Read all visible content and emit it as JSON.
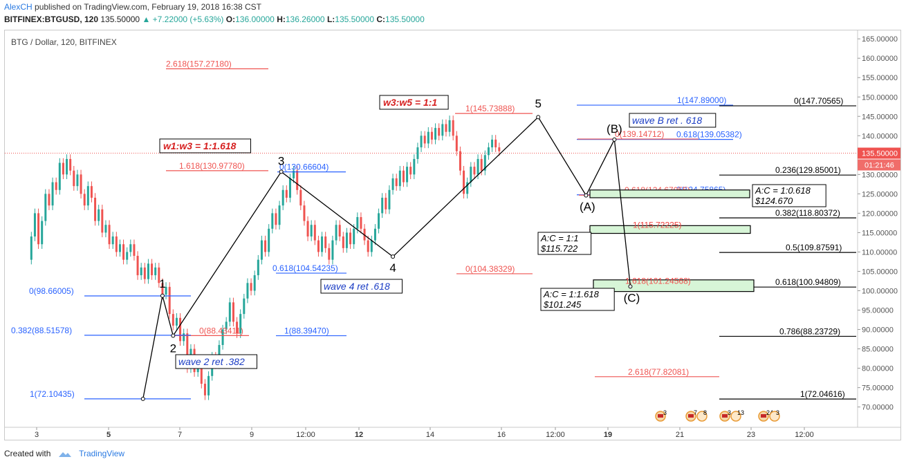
{
  "header": {
    "author": "AlexCH",
    "published": " published on TradingView.com, February 19, 2018 16:38 CST",
    "symbol": "BITFINEX:BTGUSD, 120",
    "price": "135.50000",
    "change": "▲ +7.22000 (+5.63%)",
    "o_label": "O:",
    "o_value": "136.00000",
    "h_label": "H:",
    "h_value": "136.26000",
    "l_label": "L:",
    "l_value": "135.50000",
    "c_label": "C:",
    "c_value": "135.50000"
  },
  "symbol_title": "BTG / Dollar, 120, BITFINEX",
  "footer": {
    "created_with": "Created with",
    "brand": "TradingView"
  },
  "colors": {
    "up": "#26a69a",
    "down": "#ef5350",
    "fib_red": "#ef5350",
    "fib_blue": "#2962ff",
    "line": "#000000",
    "zone_fill": "#d7f5d7"
  },
  "chart_data": {
    "type": "candlestick",
    "title": "BTG / Dollar, 120, BITFINEX",
    "ylim": [
      65,
      166
    ],
    "y_ticks": [
      65,
      70,
      75,
      80,
      85,
      90,
      95,
      100,
      105,
      110,
      115,
      120,
      125,
      130,
      135,
      140,
      145,
      150,
      155,
      160,
      165
    ],
    "y_tick_labels": [
      "65.00000",
      "70.00000",
      "75.00000",
      "80.00000",
      "85.00000",
      "90.00000",
      "95.00000",
      "100.00000",
      "105.00000",
      "110.00000",
      "115.00000",
      "120.00000",
      "125.00000",
      "130.00000",
      "135.00000",
      "140.00000",
      "145.00000",
      "150.00000",
      "155.00000",
      "160.00000",
      "165.00000"
    ],
    "x_ticks": [
      {
        "label": "3",
        "bold": false
      },
      {
        "label": "5",
        "bold": true
      },
      {
        "label": "7",
        "bold": false
      },
      {
        "label": "9",
        "bold": false
      },
      {
        "label": "12:00",
        "bold": false
      },
      {
        "label": "12",
        "bold": true
      },
      {
        "label": "14",
        "bold": false
      },
      {
        "label": "16",
        "bold": false
      },
      {
        "label": "12:00",
        "bold": false
      },
      {
        "label": "19",
        "bold": true
      },
      {
        "label": "21",
        "bold": false
      },
      {
        "label": "23",
        "bold": false
      },
      {
        "label": "12:00",
        "bold": false
      }
    ],
    "last_price": "135.50000",
    "countdown": "01:21:46",
    "wave_path": [
      {
        "label": "",
        "t": 6.0,
        "y": 72.1
      },
      {
        "label": "1",
        "t": 6.55,
        "y": 98.7
      },
      {
        "label": "2",
        "t": 6.85,
        "y": 88.4
      },
      {
        "label": "3",
        "t": 9.9,
        "y": 130.7
      },
      {
        "label": "4",
        "t": 13.05,
        "y": 108.8
      },
      {
        "label": "5",
        "t": 17.15,
        "y": 144.8
      },
      {
        "label": "(A)",
        "t": 18.5,
        "y": 124.6
      },
      {
        "label": "(B)",
        "t": 19.3,
        "y": 139.0
      },
      {
        "label": "(C)",
        "t": 19.75,
        "y": 101.1
      }
    ],
    "candles": [
      [
        -0.15,
        108,
        114
      ],
      [
        -0.05,
        114,
        120
      ],
      [
        0.05,
        120,
        112
      ],
      [
        0.15,
        112,
        118
      ],
      [
        0.25,
        118,
        125
      ],
      [
        0.35,
        125,
        122
      ],
      [
        0.45,
        122,
        128
      ],
      [
        0.55,
        128,
        126
      ],
      [
        0.65,
        126,
        133
      ],
      [
        0.75,
        133,
        130
      ],
      [
        0.85,
        130,
        134
      ],
      [
        0.95,
        134,
        131
      ],
      [
        1.05,
        131,
        127
      ],
      [
        1.15,
        127,
        130
      ],
      [
        1.25,
        130,
        125
      ],
      [
        1.35,
        125,
        122
      ],
      [
        1.45,
        122,
        127
      ],
      [
        1.55,
        127,
        124
      ],
      [
        1.65,
        124,
        118
      ],
      [
        1.75,
        118,
        121
      ],
      [
        1.85,
        121,
        115
      ],
      [
        1.95,
        115,
        117
      ],
      [
        2.05,
        117,
        112
      ],
      [
        2.15,
        112,
        114
      ],
      [
        2.25,
        114,
        110
      ],
      [
        2.35,
        110,
        112
      ],
      [
        2.45,
        112,
        108
      ],
      [
        2.55,
        108,
        110
      ],
      [
        2.65,
        110,
        112
      ],
      [
        2.75,
        112,
        109
      ],
      [
        2.85,
        109,
        104
      ],
      [
        2.95,
        104,
        106
      ],
      [
        3.05,
        106,
        103
      ],
      [
        3.15,
        103,
        107
      ],
      [
        3.25,
        107,
        104
      ],
      [
        3.35,
        104,
        106
      ],
      [
        3.45,
        106,
        102
      ],
      [
        3.55,
        102,
        99
      ],
      [
        3.65,
        99,
        101
      ],
      [
        3.75,
        101,
        94
      ],
      [
        3.85,
        94,
        91
      ],
      [
        3.95,
        91,
        93
      ],
      [
        4.05,
        93,
        87
      ],
      [
        4.15,
        87,
        89
      ],
      [
        4.25,
        89,
        80
      ],
      [
        4.35,
        80,
        85
      ],
      [
        4.45,
        85,
        79
      ],
      [
        4.55,
        79,
        82
      ],
      [
        4.65,
        82,
        76
      ],
      [
        4.75,
        76,
        73
      ],
      [
        4.85,
        73,
        78
      ],
      [
        4.95,
        78,
        83
      ],
      [
        5.05,
        83,
        81
      ],
      [
        5.15,
        81,
        86
      ],
      [
        5.25,
        86,
        90
      ],
      [
        5.35,
        90,
        92
      ],
      [
        5.45,
        92,
        97
      ],
      [
        5.55,
        97,
        92
      ],
      [
        5.65,
        92,
        89
      ],
      [
        5.75,
        89,
        94
      ],
      [
        5.85,
        94,
        98
      ],
      [
        5.95,
        98,
        102
      ],
      [
        6.05,
        102,
        100
      ],
      [
        6.15,
        100,
        104
      ],
      [
        6.25,
        104,
        108
      ],
      [
        6.35,
        108,
        113
      ],
      [
        6.45,
        113,
        110
      ],
      [
        6.55,
        110,
        116
      ],
      [
        6.65,
        116,
        120
      ],
      [
        6.75,
        120,
        117
      ],
      [
        6.85,
        117,
        122
      ],
      [
        6.95,
        122,
        126
      ],
      [
        7.05,
        126,
        124
      ],
      [
        7.15,
        124,
        129
      ],
      [
        7.25,
        129,
        131
      ],
      [
        7.35,
        131,
        126
      ],
      [
        7.45,
        126,
        122
      ],
      [
        7.55,
        122,
        118
      ],
      [
        7.65,
        118,
        114
      ],
      [
        7.75,
        114,
        117
      ],
      [
        7.85,
        117,
        113
      ],
      [
        7.95,
        113,
        110
      ],
      [
        8.05,
        110,
        114
      ],
      [
        8.15,
        114,
        111
      ],
      [
        8.25,
        111,
        108
      ],
      [
        8.35,
        108,
        113
      ],
      [
        8.45,
        113,
        117
      ],
      [
        8.55,
        117,
        114
      ],
      [
        8.65,
        114,
        111
      ],
      [
        8.75,
        111,
        115
      ],
      [
        8.85,
        115,
        112
      ],
      [
        8.95,
        112,
        116
      ],
      [
        9.05,
        116,
        119
      ],
      [
        9.15,
        119,
        116
      ],
      [
        9.25,
        116,
        113
      ],
      [
        9.35,
        113,
        110
      ],
      [
        9.45,
        110,
        113
      ],
      [
        9.55,
        113,
        116
      ],
      [
        9.65,
        116,
        120
      ],
      [
        9.75,
        120,
        124
      ],
      [
        9.85,
        124,
        121
      ],
      [
        9.95,
        121,
        126
      ],
      [
        10.05,
        126,
        129
      ],
      [
        10.15,
        129,
        127
      ],
      [
        10.25,
        127,
        131
      ],
      [
        10.35,
        131,
        128
      ],
      [
        10.45,
        128,
        132
      ],
      [
        10.55,
        132,
        130
      ],
      [
        10.65,
        130,
        134
      ],
      [
        10.75,
        134,
        137
      ],
      [
        10.85,
        137,
        140
      ],
      [
        10.95,
        140,
        138
      ],
      [
        11.05,
        138,
        141
      ],
      [
        11.15,
        141,
        139
      ],
      [
        11.25,
        139,
        142
      ],
      [
        11.35,
        142,
        140
      ],
      [
        11.45,
        140,
        143
      ],
      [
        11.55,
        143,
        141
      ],
      [
        11.65,
        141,
        144
      ],
      [
        11.75,
        144,
        140
      ],
      [
        11.85,
        140,
        136
      ],
      [
        11.95,
        136,
        131
      ],
      [
        12.05,
        131,
        125
      ],
      [
        12.15,
        125,
        128
      ],
      [
        12.25,
        128,
        132
      ],
      [
        12.35,
        132,
        130
      ],
      [
        12.45,
        130,
        134
      ],
      [
        12.55,
        134,
        131
      ],
      [
        12.65,
        131,
        135
      ],
      [
        12.75,
        135,
        137
      ],
      [
        12.85,
        137,
        139
      ],
      [
        12.95,
        139,
        137
      ],
      [
        13.05,
        137,
        136
      ]
    ],
    "fib_levels": [
      {
        "label": "2.618(157.27180)",
        "y": 157.27,
        "color": "red"
      },
      {
        "label": "1.618(130.97780)",
        "y": 130.98,
        "color": "red"
      },
      {
        "label": "0(88.43411)",
        "y": 88.43,
        "color": "red"
      },
      {
        "label": "0(98.66005)",
        "y": 98.66,
        "color": "blue"
      },
      {
        "label": "0.382(88.51578)",
        "y": 88.52,
        "color": "blue"
      },
      {
        "label": "1(72.10435)",
        "y": 72.1,
        "color": "blue"
      },
      {
        "label": "0(130.66604)",
        "y": 130.67,
        "color": "blue"
      },
      {
        "label": "0.618(104.54235)",
        "y": 104.54,
        "color": "blue"
      },
      {
        "label": "1(88.39470)",
        "y": 88.39,
        "color": "blue"
      },
      {
        "label": "1(145.73888)",
        "y": 145.74,
        "color": "red"
      },
      {
        "label": "0(104.38329)",
        "y": 104.38,
        "color": "red"
      },
      {
        "label": "1(147.89000)",
        "y": 147.89,
        "color": "blue"
      },
      {
        "label": "0.618(139.05382)",
        "y": 139.05,
        "color": "blue"
      },
      {
        "label": "0(124.75865)",
        "y": 124.76,
        "color": "blue"
      },
      {
        "label": "0(139.14712)",
        "y": 139.15,
        "color": "red"
      },
      {
        "label": "0.618(124.67055)",
        "y": 124.67,
        "color": "red"
      },
      {
        "label": "1(115.72225)",
        "y": 115.72,
        "color": "red"
      },
      {
        "label": "1.618(101.24568)",
        "y": 101.25,
        "color": "red"
      },
      {
        "label": "2.618(77.82081)",
        "y": 77.82,
        "color": "red"
      },
      {
        "label": "0(147.70565)",
        "y": 147.71,
        "color": "black"
      },
      {
        "label": "0.236(129.85001)",
        "y": 129.85,
        "color": "black"
      },
      {
        "label": "0.382(118.80372)",
        "y": 118.8,
        "color": "black"
      },
      {
        "label": "0.5(109.87591)",
        "y": 109.88,
        "color": "black"
      },
      {
        "label": "0.618(100.94809)",
        "y": 100.95,
        "color": "black"
      },
      {
        "label": "0.786(88.23729)",
        "y": 88.24,
        "color": "black"
      },
      {
        "label": "1(72.04616)",
        "y": 72.05,
        "color": "black"
      }
    ],
    "annotations": [
      {
        "text": "w1:w3 = 1:1.618",
        "style": "red"
      },
      {
        "text": "w3:w5 = 1:1",
        "style": "red"
      },
      {
        "text": "wave 2 ret .382",
        "style": "blue"
      },
      {
        "text": "wave 4 ret .618",
        "style": "blue"
      },
      {
        "text": "wave B ret . 618",
        "style": "blue"
      },
      {
        "text": "A:C = 1:0.618",
        "sub": "$124.670",
        "style": "black"
      },
      {
        "text": "A:C = 1:1",
        "sub": "$115.722",
        "style": "black"
      },
      {
        "text": "A:C = 1:1.618",
        "sub": "$101.245",
        "style": "black"
      }
    ],
    "target_zones": [
      {
        "y_low": 124.0,
        "y_high": 126.0
      },
      {
        "y_low": 114.8,
        "y_high": 116.8
      },
      {
        "y_low": 99.8,
        "y_high": 102.8
      }
    ],
    "event_badges": [
      {
        "count": "3"
      },
      {
        "count": "7",
        "extra": "8"
      },
      {
        "count": "3",
        "extra": "13"
      },
      {
        "count": "24",
        "extra": "3"
      }
    ]
  }
}
